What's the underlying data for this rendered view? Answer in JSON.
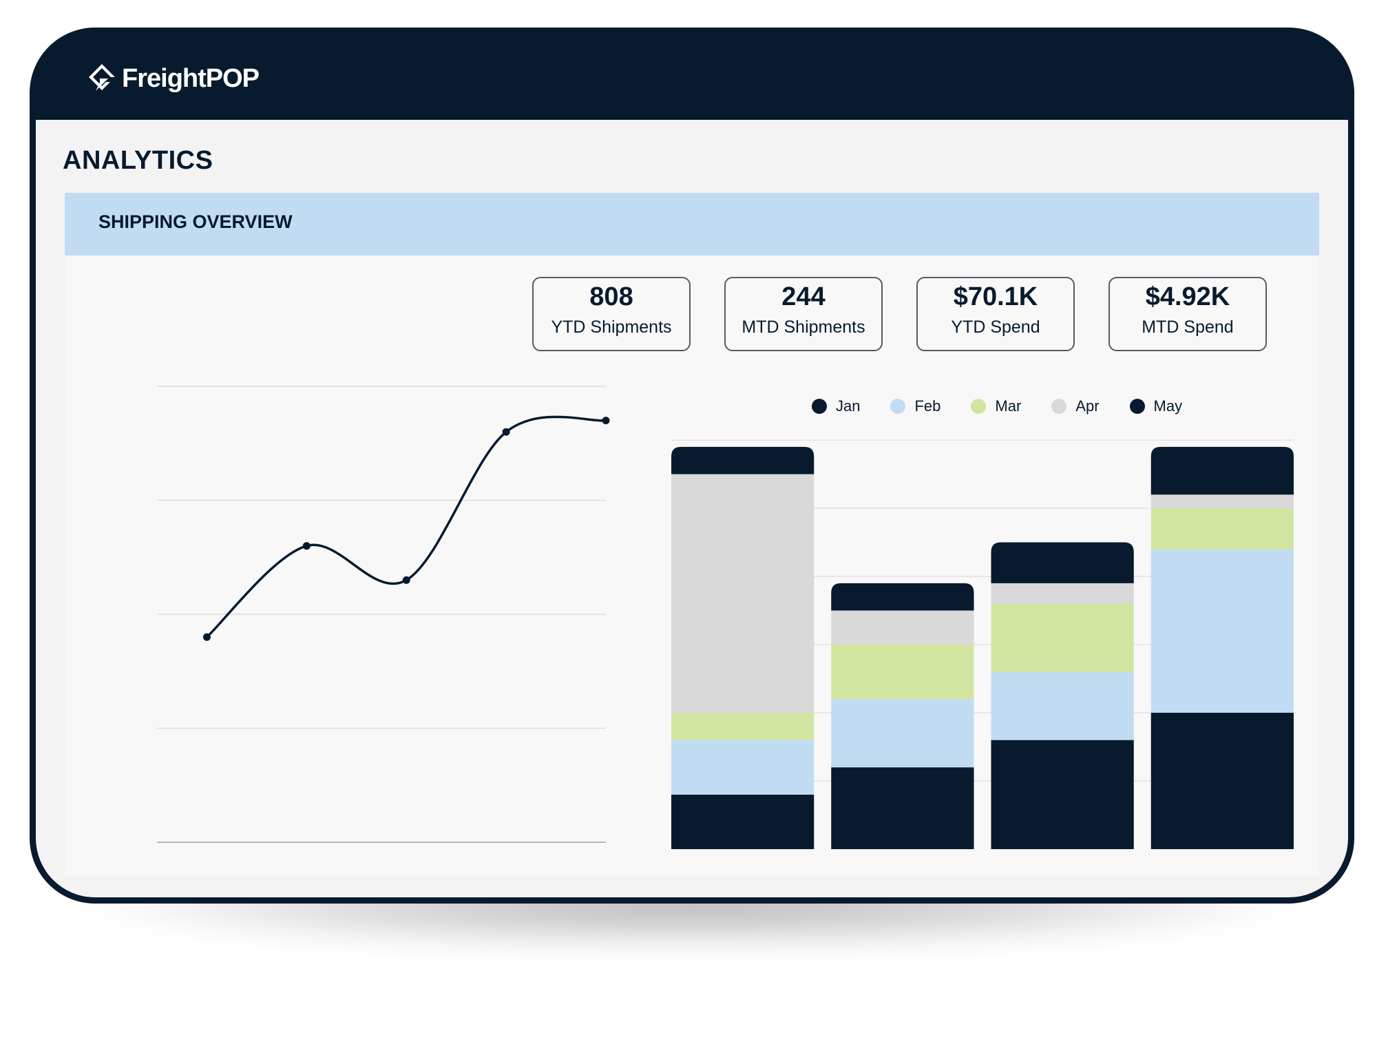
{
  "app": {
    "brand_name": "FreightPOP",
    "brand_icon": "freightpop-logo-icon"
  },
  "page": {
    "title": "ANALYTICS"
  },
  "section": {
    "title": "SHIPPING OVERVIEW"
  },
  "colors": {
    "navy": "#071a2e",
    "light_blue": "#c1dbf3",
    "light_green": "#d2e5a0",
    "light_gray": "#d9d9d9",
    "panel_bg": "#f8f8f8"
  },
  "kpis": [
    {
      "value": "808",
      "label": "YTD Shipments"
    },
    {
      "value": "244",
      "label": "MTD Shipments"
    },
    {
      "value": "$70.1K",
      "label": "YTD Spend"
    },
    {
      "value": "$4.92K",
      "label": "MTD Spend"
    }
  ],
  "chart_data": [
    {
      "type": "line",
      "points": [
        {
          "x": 1,
          "y": 1.8
        },
        {
          "x": 2,
          "y": 2.6
        },
        {
          "x": 3,
          "y": 2.3
        },
        {
          "x": 4,
          "y": 3.6
        },
        {
          "x": 5,
          "y": 3.7
        }
      ],
      "ylim": [
        0,
        4
      ],
      "grid": true,
      "smooth": true,
      "markers": true,
      "color": "#071a2e"
    },
    {
      "type": "bar",
      "stacked": true,
      "categories": [
        "",
        "",
        "",
        ""
      ],
      "series": [
        {
          "name": "Jan",
          "color": "#071a2e",
          "values": [
            0.8,
            1.2,
            1.6,
            2.0
          ]
        },
        {
          "name": "Feb",
          "color": "#c1dbf3",
          "values": [
            0.8,
            1.0,
            1.0,
            2.4
          ]
        },
        {
          "name": "Mar",
          "color": "#d2e5a0",
          "values": [
            0.4,
            0.8,
            1.0,
            0.6
          ]
        },
        {
          "name": "Apr",
          "color": "#d9d9d9",
          "values": [
            3.5,
            0.5,
            0.3,
            0.2
          ]
        },
        {
          "name": "May",
          "color": "#071a2e",
          "values": [
            0.4,
            0.4,
            0.6,
            0.7
          ]
        }
      ],
      "ylim": [
        0,
        6
      ],
      "grid": true,
      "legend": "top-center"
    }
  ]
}
